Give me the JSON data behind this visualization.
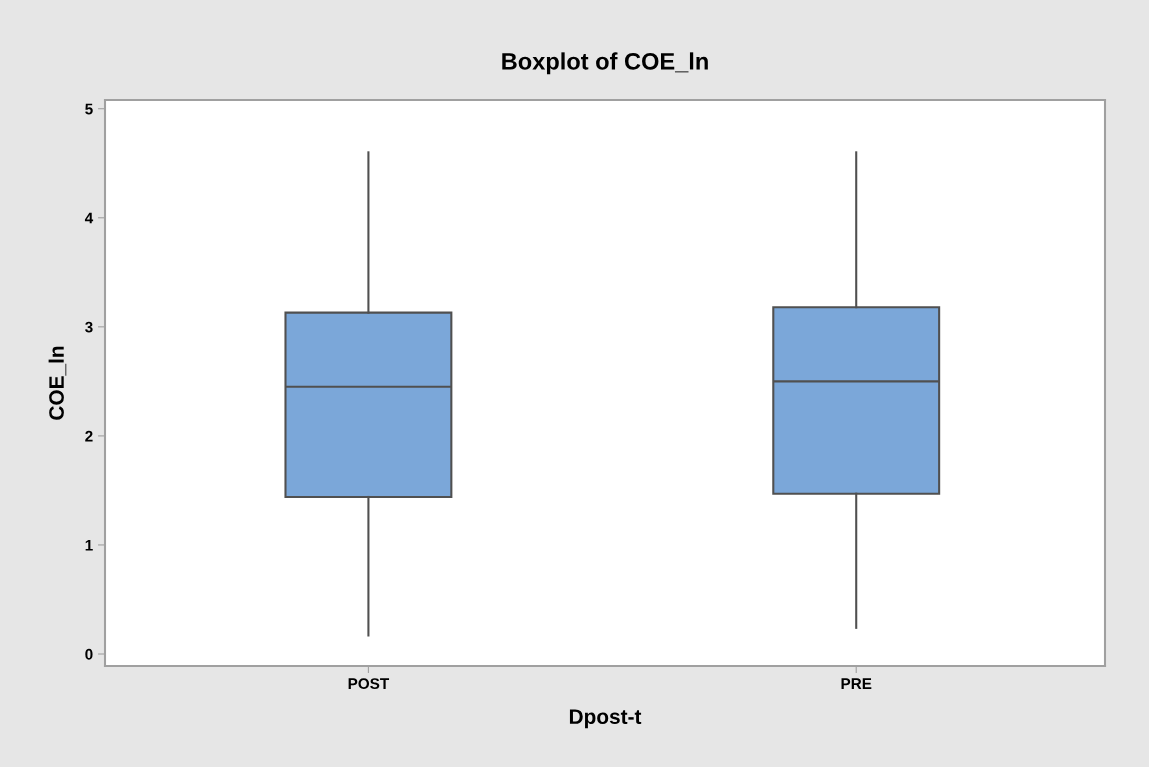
{
  "chart_data": {
    "type": "box",
    "title": "Boxplot of COE_ln",
    "xlabel": "Dpost-t",
    "ylabel": "COE_ln",
    "categories": [
      "POST",
      "PRE"
    ],
    "color": "#7ba7d9",
    "boxes": [
      {
        "low": 0.17,
        "q1": 1.44,
        "median": 2.45,
        "q3": 3.13,
        "high": 4.6
      },
      {
        "low": 0.24,
        "q1": 1.47,
        "median": 2.5,
        "q3": 3.18,
        "high": 4.6
      }
    ],
    "ylim": [
      -0.11,
      5.08
    ],
    "yticks": [
      0,
      1,
      2,
      3,
      4,
      5
    ],
    "grid": false
  }
}
